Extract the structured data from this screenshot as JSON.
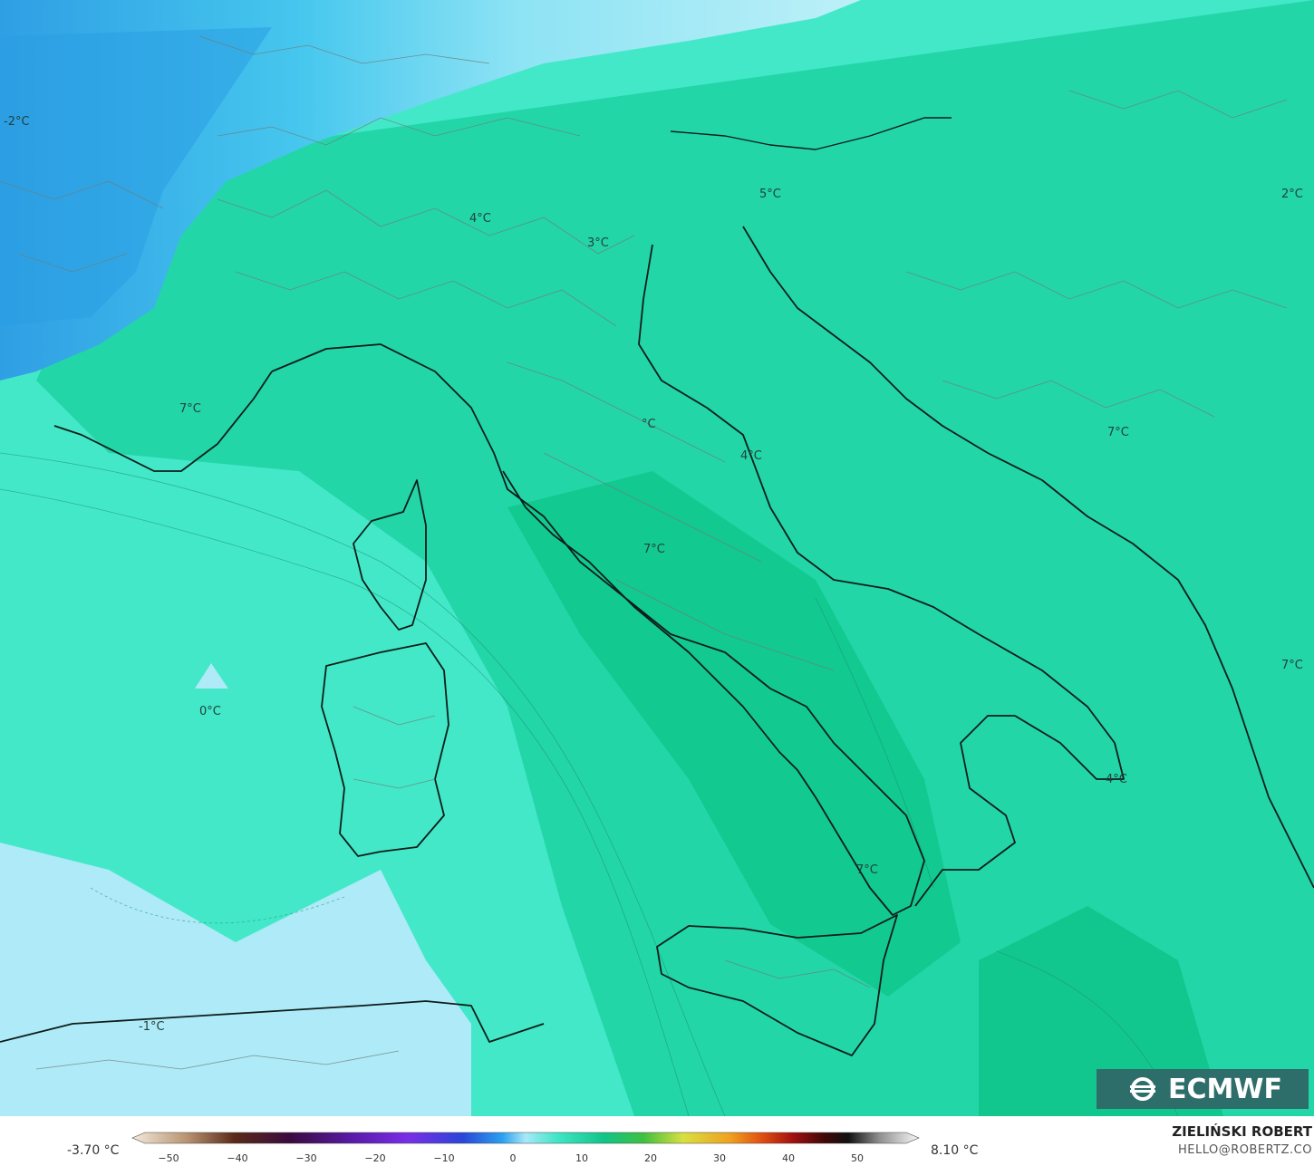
{
  "map": {
    "labels": [
      {
        "text": "-2°C"
      },
      {
        "text": "4°C"
      },
      {
        "text": "3°C"
      },
      {
        "text": "5°C"
      },
      {
        "text": "2°C"
      },
      {
        "text": "7°C"
      },
      {
        "text": "°C"
      },
      {
        "text": "4°C"
      },
      {
        "text": "7°C"
      },
      {
        "text": "7°C"
      },
      {
        "text": "0°C"
      },
      {
        "text": "7°C"
      },
      {
        "text": "4°C"
      },
      {
        "text": "7°C"
      },
      {
        "text": "-1°C"
      }
    ]
  },
  "logo": {
    "text": "ECMWF"
  },
  "scale": {
    "min_label": "-3.70 °C",
    "max_label": "8.10 °C",
    "ticks": [
      "−50",
      "−40",
      "−30",
      "−20",
      "−10",
      "0",
      "10",
      "20",
      "30",
      "40",
      "50"
    ]
  },
  "credit": {
    "name": "ZIELIŃSKI ROBERT",
    "email": "HELLO@ROBERTZ.CO"
  },
  "colors": {
    "sea_main": "#3fe6c2",
    "land_main": "#1fd4a3",
    "land_warm": "#12c88f",
    "cold_blue": "#2aa9ea",
    "light_blue": "#a9e8f7"
  }
}
